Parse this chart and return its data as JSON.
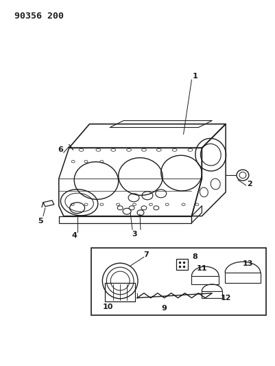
{
  "title_text": "90356 200",
  "bg_color": "#ffffff",
  "line_color": "#1a1a1a",
  "fig_width": 4.01,
  "fig_height": 5.33,
  "dpi": 100,
  "title_fontsize": 9.5,
  "label_fontsize": 7.0
}
